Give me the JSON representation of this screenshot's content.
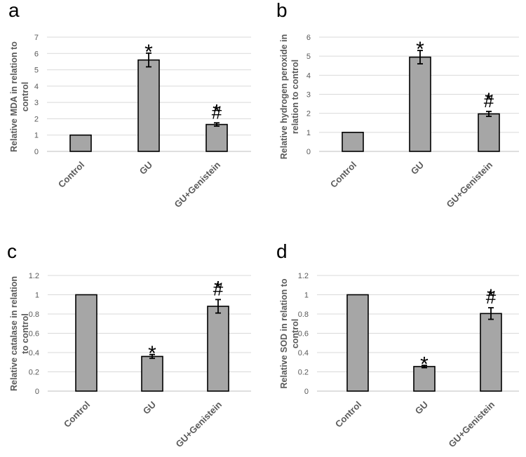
{
  "chart_data": [
    {
      "panel": "a",
      "type": "bar",
      "ylabel": [
        "Relative MDA in relation to",
        "control"
      ],
      "ylim": [
        0,
        7
      ],
      "yticks": [
        0,
        1,
        2,
        3,
        4,
        5,
        6,
        7
      ],
      "ytick_labels": [
        "0",
        "1",
        "2",
        "3",
        "4",
        "5",
        "6",
        "7"
      ],
      "categories": [
        "Control",
        "GU",
        "GU+Genistein"
      ],
      "values": [
        1.0,
        5.6,
        1.65
      ],
      "errors": [
        0,
        0.42,
        0.1
      ],
      "significance": [
        "",
        "*",
        "*#"
      ]
    },
    {
      "panel": "b",
      "type": "bar",
      "ylabel": [
        "Relative hydrogen peroxide in",
        "relation to control"
      ],
      "ylim": [
        0,
        6
      ],
      "yticks": [
        0,
        1,
        2,
        3,
        4,
        5,
        6
      ],
      "ytick_labels": [
        "0",
        "1",
        "2",
        "3",
        "4",
        "5",
        "6"
      ],
      "categories": [
        "Control",
        "GU",
        "GU+Genistein"
      ],
      "values": [
        1.0,
        4.95,
        1.97
      ],
      "errors": [
        0,
        0.35,
        0.13
      ],
      "significance": [
        "",
        "*",
        "*#"
      ]
    },
    {
      "panel": "c",
      "type": "bar",
      "ylabel": [
        "Relative catalase in relation",
        "to control"
      ],
      "ylim": [
        0,
        1.2
      ],
      "yticks": [
        0,
        0.2,
        0.4,
        0.6,
        0.8,
        1.0,
        1.2
      ],
      "ytick_labels": [
        "0",
        "0.2",
        "0.4",
        "0.6",
        "0.8",
        "1",
        "1.2"
      ],
      "categories": [
        "Control",
        "GU",
        "GU+Genistein"
      ],
      "values": [
        1.0,
        0.36,
        0.88
      ],
      "errors": [
        0,
        0.02,
        0.07
      ],
      "significance": [
        "",
        "*",
        "*#"
      ]
    },
    {
      "panel": "d",
      "type": "bar",
      "ylabel": [
        "Relative SOD in relation to",
        "control"
      ],
      "ylim": [
        0,
        1.2
      ],
      "yticks": [
        0,
        0.2,
        0.4,
        0.6,
        0.8,
        1.0,
        1.2
      ],
      "ytick_labels": [
        "0",
        "0.2",
        "0.4",
        "0.6",
        "0.8",
        "1",
        "1.2"
      ],
      "categories": [
        "Control",
        "GU",
        "GU+Genistein"
      ],
      "values": [
        1.0,
        0.255,
        0.805
      ],
      "errors": [
        0,
        0.012,
        0.06
      ],
      "significance": [
        "",
        "*",
        "*#"
      ]
    }
  ],
  "colors": {
    "bar_fill": "#a6a6a6",
    "bar_stroke": "#000000",
    "grid": "#d9d9d9",
    "text": "#595959"
  }
}
